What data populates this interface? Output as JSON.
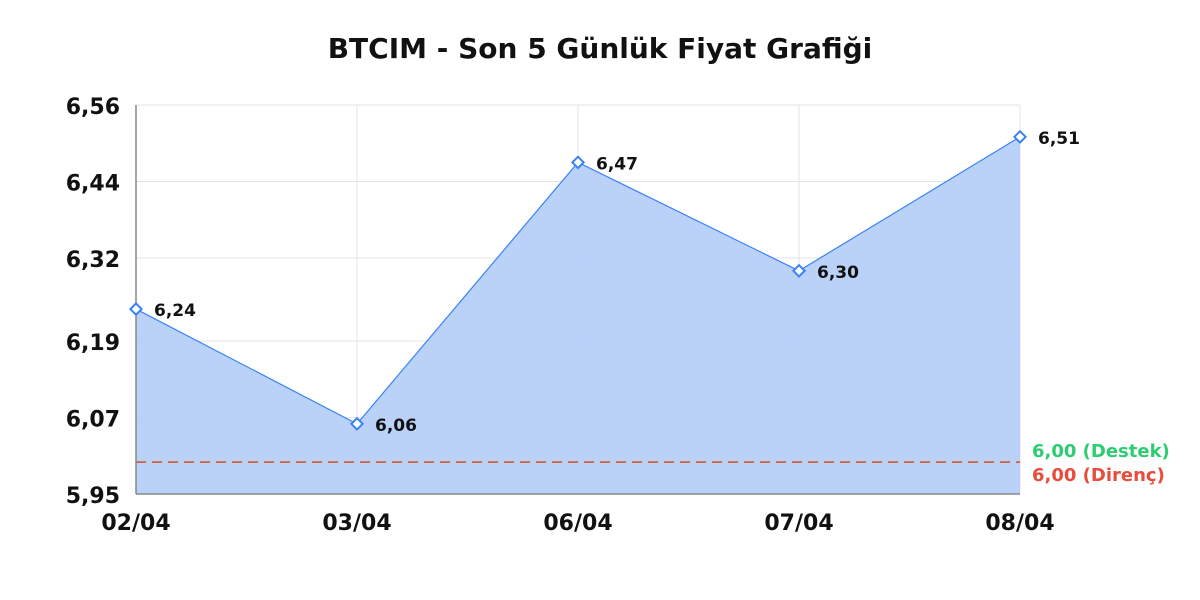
{
  "chart_data": {
    "type": "area",
    "title": "BTCIM - Son 5 Günlük Fiyat Grafiği",
    "xlabel": "",
    "ylabel": "",
    "categories": [
      "02/04",
      "03/04",
      "06/04",
      "07/04",
      "08/04"
    ],
    "values": [
      6.24,
      6.06,
      6.47,
      6.3,
      6.51
    ],
    "value_labels": [
      "6,24",
      "6,06",
      "6,47",
      "6,30",
      "6,51"
    ],
    "ylim": [
      5.95,
      6.56
    ],
    "y_ticks": [
      5.95,
      6.07,
      6.19,
      6.32,
      6.44,
      6.56
    ],
    "y_tick_labels": [
      "5,95",
      "6,07",
      "6,19",
      "6,32",
      "6,44",
      "6,56"
    ],
    "grid": true,
    "reference_lines": [
      {
        "value": 6.0,
        "label": "6,00 (Destek)",
        "color": "#2ecc71"
      },
      {
        "value": 6.0,
        "label": "6,00 (Direnç)",
        "color": "#e74c3c"
      }
    ],
    "colors": {
      "line": "#3b82f6",
      "fill": "#b6cff8"
    }
  }
}
